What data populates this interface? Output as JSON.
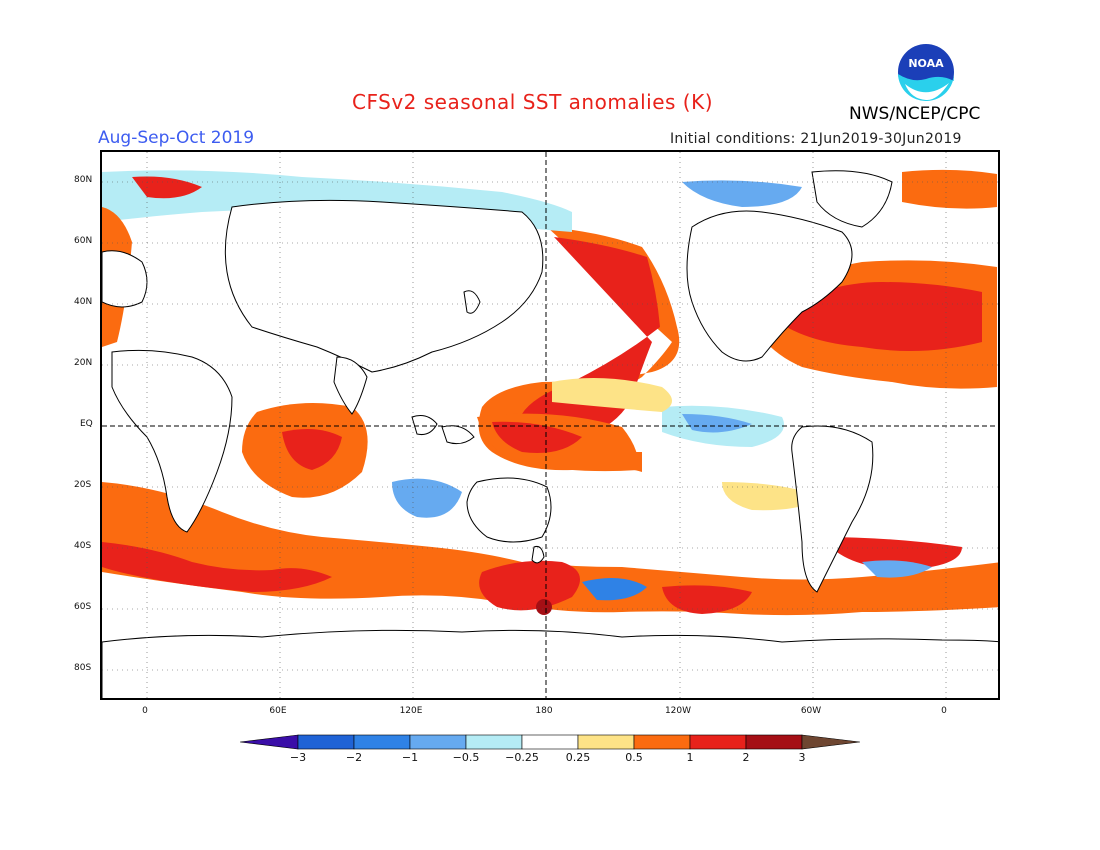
{
  "header": {
    "title": "CFSv2 seasonal SST anomalies (K)",
    "period": "Aug-Sep-Oct 2019",
    "initial_conditions": "Initial conditions: 21Jun2019-30Jun2019",
    "agency": "NWS/NCEP/CPC",
    "logo_text": "NOAA"
  },
  "map": {
    "lat_labels": [
      "80N",
      "60N",
      "40N",
      "20N",
      "EQ",
      "20S",
      "40S",
      "60S",
      "80S"
    ],
    "lon_labels": [
      "0",
      "60E",
      "120E",
      "180",
      "120W",
      "60W",
      "0"
    ]
  },
  "colorbar": {
    "levels": [
      "-3",
      "-2",
      "-1",
      "-0.5",
      "-0.25",
      "0.25",
      "0.5",
      "1",
      "2",
      "3"
    ],
    "colors": [
      "#3a0ea8",
      "#1f63d6",
      "#2f82e6",
      "#66aaf0",
      "#b5ecf5",
      "#ffffff",
      "#fde387",
      "#fb6b10",
      "#e8221b",
      "#a50f15",
      "#6e4631"
    ]
  }
}
